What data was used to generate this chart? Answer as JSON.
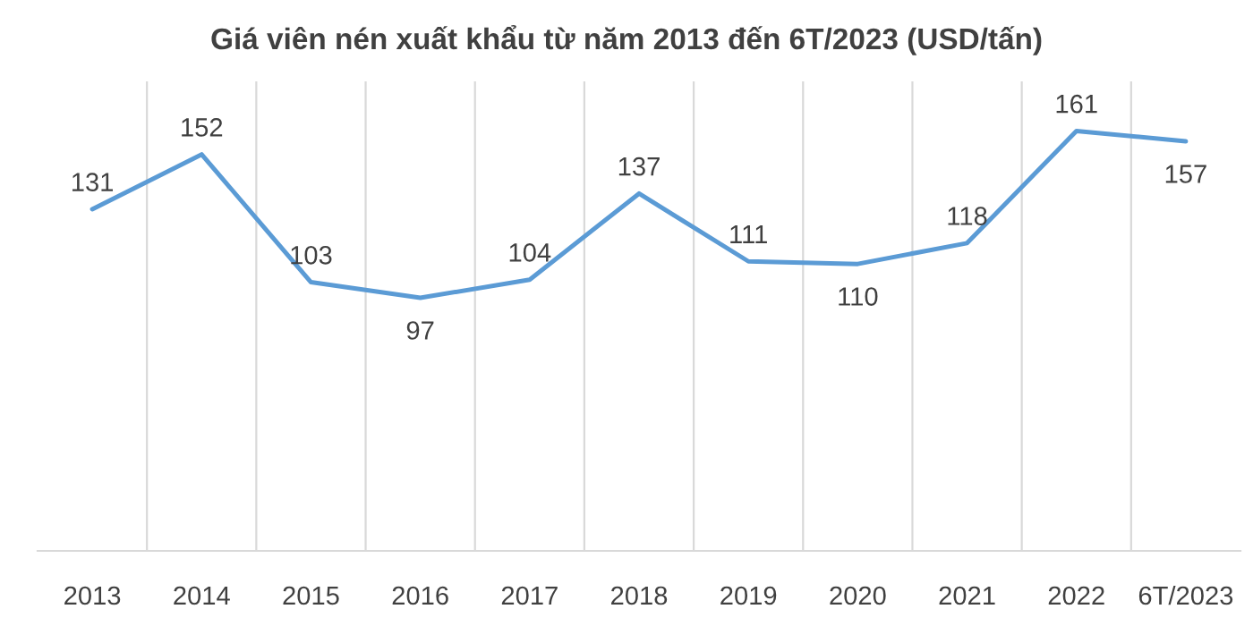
{
  "chart_data": {
    "type": "line",
    "title": "Giá viên nén xuất khẩu từ năm 2013 đến 6T/2023 (USD/tấn)",
    "categories": [
      "2013",
      "2014",
      "2015",
      "2016",
      "2017",
      "2018",
      "2019",
      "2020",
      "2021",
      "2022",
      "6T/2023"
    ],
    "series": [
      {
        "color": "#5b9bd5",
        "values": [
          131,
          152,
          103,
          97,
          104,
          137,
          111,
          110,
          118,
          161,
          157
        ]
      }
    ],
    "ylim": [
      0,
      180
    ],
    "tick_labels": "x",
    "grid": "x",
    "data_labels": true,
    "marker": "none",
    "line_style": "solid"
  }
}
